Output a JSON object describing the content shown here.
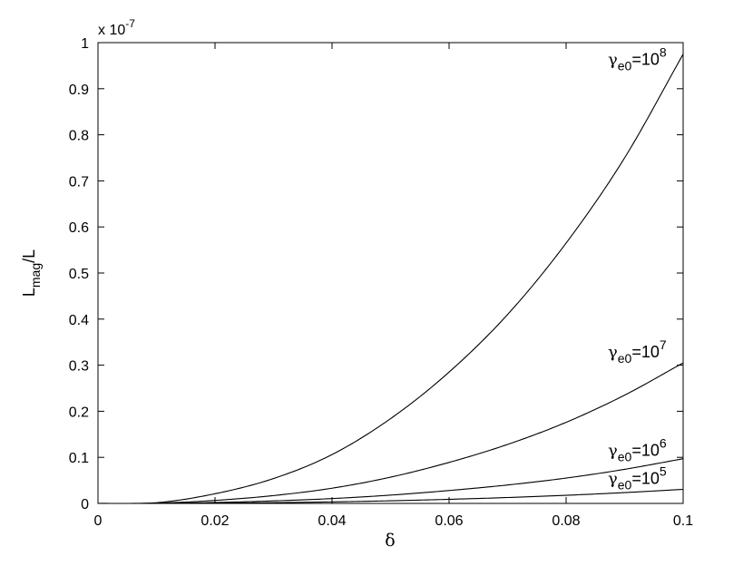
{
  "chart_data": {
    "type": "line",
    "xlabel": "δ",
    "ylabel": {
      "main": "L",
      "sub": "mag",
      "tail": "/L"
    },
    "y_multiplier": {
      "prefix": "x 10",
      "exponent": "-7"
    },
    "xlim": [
      0,
      0.1
    ],
    "ylim": [
      0,
      1
    ],
    "grid": false,
    "x_ticks": [
      "0",
      "0.02",
      "0.04",
      "0.06",
      "0.08",
      "0.1"
    ],
    "y_ticks": [
      "0",
      "0.1",
      "0.2",
      "0.3",
      "0.4",
      "0.5",
      "0.6",
      "0.7",
      "0.8",
      "0.9",
      "1"
    ],
    "x": [
      0,
      0.01,
      0.02,
      0.03,
      0.04,
      0.05,
      0.06,
      0.07,
      0.08,
      0.09,
      0.1
    ],
    "series": [
      {
        "label": {
          "sym": "γ",
          "sub": "e0",
          "eq": "=10",
          "exp": "8"
        },
        "values": [
          0,
          0.0015,
          0.021,
          0.054,
          0.106,
          0.184,
          0.285,
          0.41,
          0.565,
          0.75,
          0.975
        ]
      },
      {
        "label": {
          "sym": "γ",
          "sub": "e0",
          "eq": "=10",
          "exp": "7"
        },
        "values": [
          0,
          0.0005,
          0.0065,
          0.017,
          0.033,
          0.057,
          0.089,
          0.128,
          0.176,
          0.235,
          0.305
        ]
      },
      {
        "label": {
          "sym": "γ",
          "sub": "e0",
          "eq": "=10",
          "exp": "6"
        },
        "values": [
          0,
          0.0002,
          0.002,
          0.0055,
          0.0105,
          0.018,
          0.028,
          0.04,
          0.055,
          0.074,
          0.097
        ]
      },
      {
        "label": {
          "sym": "γ",
          "sub": "e0",
          "eq": "=10",
          "exp": "5"
        },
        "values": [
          0,
          0.0001,
          0.0006,
          0.0017,
          0.0033,
          0.0057,
          0.0089,
          0.0128,
          0.0176,
          0.0235,
          0.0305
        ]
      }
    ]
  }
}
